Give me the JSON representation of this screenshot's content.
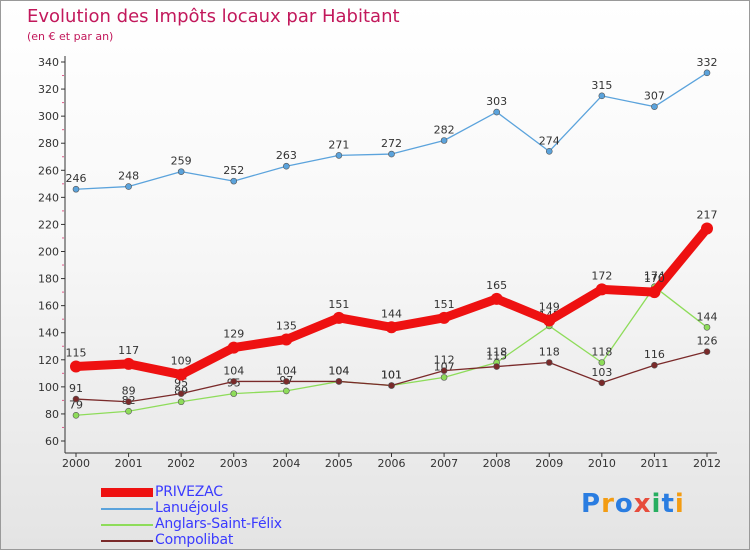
{
  "chart_data": {
    "type": "line",
    "title": "Evolution des Impôts locaux par Habitant",
    "subtitle": "(en € et par an)",
    "xlabel": "",
    "ylabel": "",
    "categories": [
      "2000",
      "2001",
      "2002",
      "2003",
      "2004",
      "2005",
      "2006",
      "2007",
      "2008",
      "2009",
      "2010",
      "2011",
      "2012"
    ],
    "ylim": [
      60,
      340
    ],
    "yticks": [
      60,
      80,
      100,
      120,
      140,
      160,
      180,
      200,
      220,
      240,
      260,
      280,
      300,
      320,
      340
    ],
    "grid": false,
    "legend_position": "bottom-left",
    "series": [
      {
        "name": "Lanuéjouls",
        "color": "#5ba3dc",
        "values": [
          246,
          248,
          259,
          252,
          263,
          271,
          272,
          282,
          303,
          274,
          315,
          307,
          332
        ]
      },
      {
        "name": "Anglars-Saint-Félix",
        "color": "#8edc5a",
        "values": [
          79,
          82,
          89,
          95,
          97,
          104,
          101,
          107,
          118,
          145,
          118,
          174,
          144
        ]
      },
      {
        "name": "Compolibat",
        "color": "#7a2a2a",
        "values": [
          91,
          89,
          95,
          104,
          104,
          104,
          101,
          112,
          115,
          118,
          103,
          116,
          126
        ]
      },
      {
        "name": "PRIVEZAC",
        "color": "#ee1111",
        "values": [
          115,
          117,
          109,
          129,
          135,
          151,
          144,
          151,
          165,
          149,
          172,
          170,
          217
        ]
      }
    ]
  },
  "legend": {
    "items": [
      {
        "label": "PRIVEZAC",
        "color": "#ee1111"
      },
      {
        "label": "Lanuéjouls",
        "color": "#5ba3dc"
      },
      {
        "label": "Anglars-Saint-Félix",
        "color": "#8edc5a"
      },
      {
        "label": "Compolibat",
        "color": "#7a2a2a"
      }
    ]
  },
  "brand": {
    "text": "Proxiti",
    "letter_colors": [
      "#2a7de1",
      "#f39c12",
      "#2a7de1",
      "#e74c3c",
      "#27ae60",
      "#2a7de1",
      "#f39c12"
    ]
  }
}
